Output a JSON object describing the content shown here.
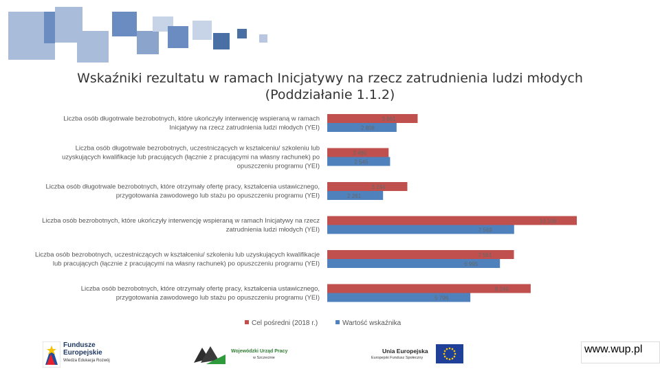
{
  "slide": {
    "title_line1": "Wskaźniki rezultatu w ramach Inicjatywy na rzecz zatrudnienia ludzi młodych",
    "title_line2": "(Poddziałanie 1.1.2)",
    "url": "www.wup.pl"
  },
  "logos": {
    "fe_line1": "Fundusze",
    "fe_line2": "Europejskie",
    "fe_line3": "Wiedza Edukacja Rozwój",
    "wup_line1": "Wojewódzki Urząd Pracy",
    "wup_line2": "w Szczecinie",
    "ue_line1": "Unia Europejska",
    "ue_line2": "Europejski Fundusz Społeczny"
  },
  "colors": {
    "target": "#c0504d",
    "actual": "#4f81bd",
    "deco_dark": "#4a6fa5",
    "deco_light": "#a9bcd9"
  },
  "chart_data": {
    "type": "bar",
    "orientation": "horizontal",
    "categories": [
      [
        "Liczba osób długotrwale bezrobotnych, które ukończyły interwencję wspieraną w ramach",
        "Inicjatywy na rzecz zatrudnienia ludzi młodych (YEI)"
      ],
      [
        "Liczba osób długotrwale bezrobotnych, uczestniczących w kształceniu/ szkoleniu lub",
        "uzyskujących kwalifikacje lub pracujących (łącznie z pracującymi na własny rachunek) po",
        "opuszczeniu programu (YEI)"
      ],
      [
        "Liczba osób długotrwale bezrobotnych, które otrzymały ofertę pracy, kształcenia ustawicznego,",
        "przygotowania zawodowego lub stażu po opuszczeniu programu (YEI)"
      ],
      [
        "Liczba osób bezrobotnych, które ukończyły interwencję wspieraną w ramach Inicjatywy na rzecz",
        "zatrudnienia ludzi młodych (YEI)"
      ],
      [
        "Liczba osób bezrobotnych, uczestniczących w kształceniu/ szkoleniu lub uzyskujących kwalifikacje",
        "lub pracujących (łącznie z pracującymi na własny rachunek) po opuszczeniu programu (YEI)"
      ],
      [
        "Liczba osób bezrobotnych, które otrzymały ofertę pracy, kształcenia ustawicznego,",
        "przygotowania zawodowego lub stażu po opuszczeniu programu (YEI)"
      ]
    ],
    "series": [
      {
        "name": "Cel pośredni (2018 r.)",
        "color": "#c0504d",
        "values": [
          3661,
          2486,
          3244,
          10108,
          7561,
          8240
        ],
        "labels": [
          "3 661",
          "2 486",
          "3 244",
          "10 108",
          "7 561",
          "8 240"
        ]
      },
      {
        "name": "Wartość wskaźnika",
        "color": "#4f81bd",
        "values": [
          2808,
          2545,
          2261,
          7569,
          6995,
          5796
        ],
        "labels": [
          "2 808",
          "2 545",
          "2 261",
          "7 569",
          "6 995",
          "5 796"
        ]
      }
    ],
    "xlim": [
      0,
      10108
    ],
    "grid": false,
    "legend_position": "bottom"
  }
}
